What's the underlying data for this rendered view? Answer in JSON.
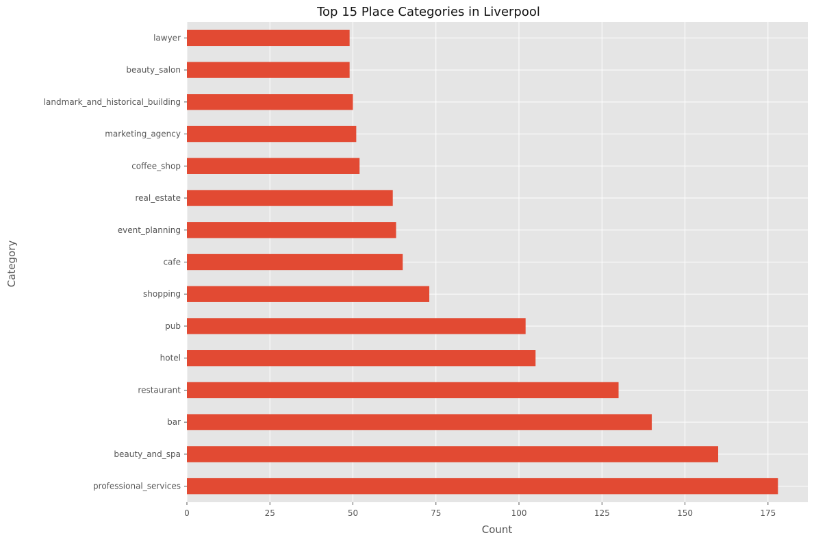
{
  "chart_data": {
    "type": "bar",
    "orientation": "horizontal",
    "title": "Top 15 Place Categories in Liverpool",
    "xlabel": "Count",
    "ylabel": "Category",
    "categories": [
      "professional_services",
      "beauty_and_spa",
      "bar",
      "restaurant",
      "hotel",
      "pub",
      "shopping",
      "cafe",
      "event_planning",
      "real_estate",
      "coffee_shop",
      "marketing_agency",
      "landmark_and_historical_building",
      "beauty_salon",
      "lawyer"
    ],
    "values": [
      178,
      160,
      140,
      130,
      105,
      102,
      73,
      65,
      63,
      62,
      52,
      51,
      50,
      49,
      49
    ],
    "xlim": [
      0,
      187
    ],
    "xticks": [
      0,
      25,
      50,
      75,
      100,
      125,
      150,
      175
    ],
    "grid": true,
    "colors": {
      "bar": "#E24A33",
      "plot_background": "#E5E5E5",
      "grid": "#FFFFFF"
    }
  }
}
